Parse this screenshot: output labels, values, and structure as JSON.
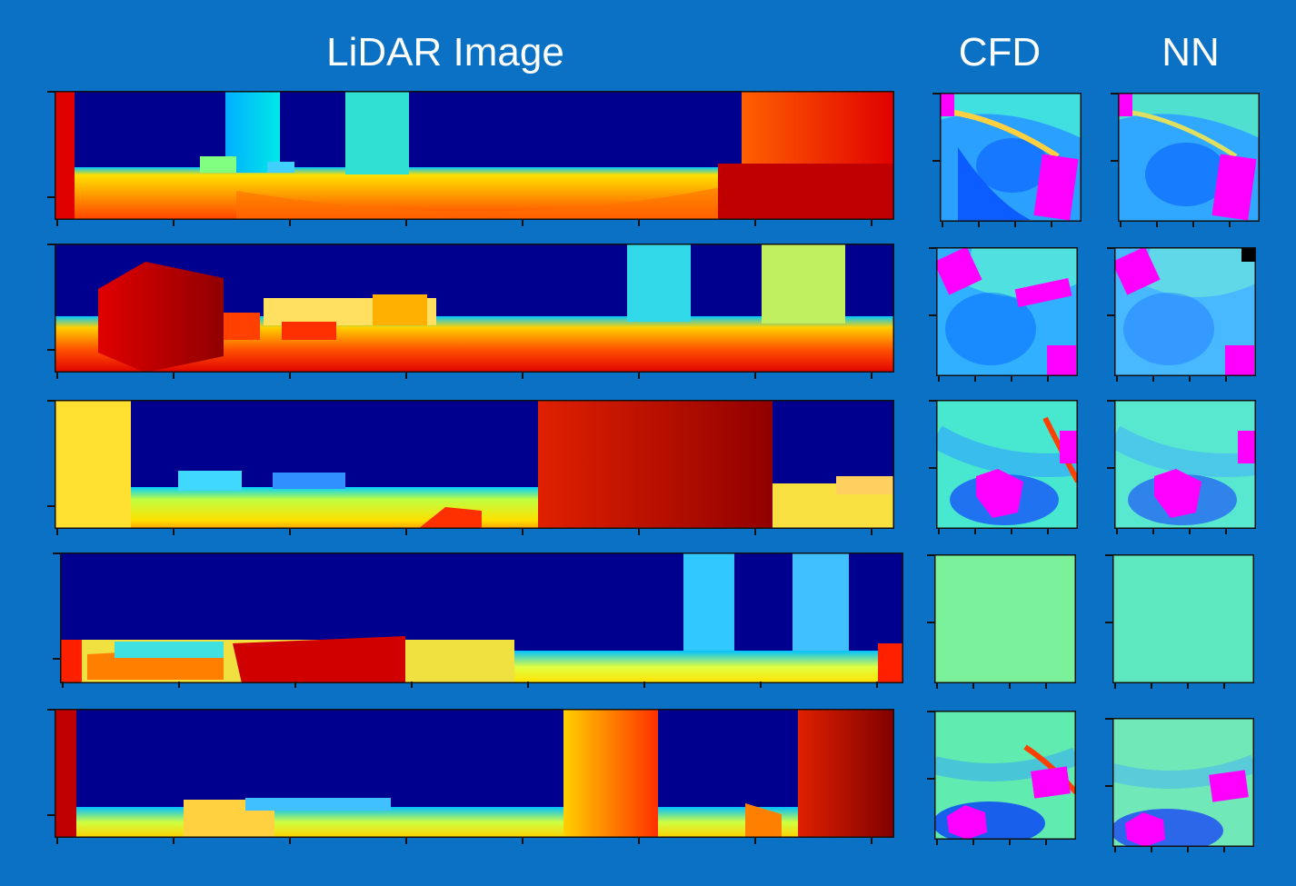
{
  "headers": {
    "lidar": "LiDAR Image",
    "cfd": "CFD",
    "nn": "NN"
  },
  "colors": {
    "background": "#0b71c4",
    "sky": "#00008f",
    "building_mask": "#ff00ff"
  },
  "rows": [
    {
      "id": 1
    },
    {
      "id": 2
    },
    {
      "id": 3
    },
    {
      "id": 4
    },
    {
      "id": 5
    }
  ]
}
